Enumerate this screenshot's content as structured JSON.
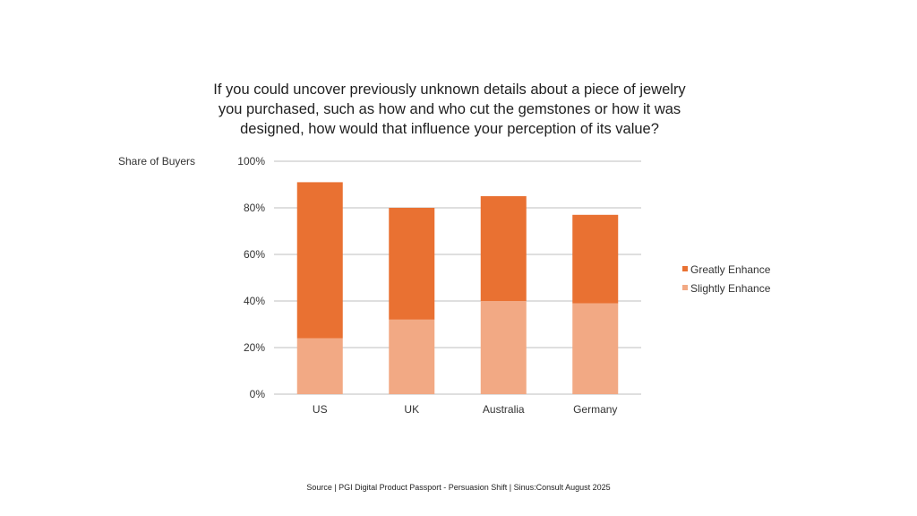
{
  "chart_data": {
    "type": "bar",
    "stacked": true,
    "title_lines": [
      "If you could uncover previously unknown details about a piece of jewelry",
      "you purchased, such as how and who cut the gemstones or how it was",
      "designed, how would that influence your perception of its value?"
    ],
    "ylabel": "Share of Buyers",
    "xlabel": "",
    "categories": [
      "US",
      "UK",
      "Australia",
      "Germany"
    ],
    "series": [
      {
        "name": "Slightly Enhance",
        "color": "#f2a984",
        "values": [
          24,
          32,
          40,
          39
        ]
      },
      {
        "name": "Greatly Enhance",
        "color": "#e97132",
        "values": [
          67,
          48,
          45,
          38
        ]
      }
    ],
    "legend_order": [
      "Greatly Enhance",
      "Slightly Enhance"
    ],
    "ylim": [
      0,
      100
    ],
    "yticks": [
      0,
      20,
      40,
      60,
      80,
      100
    ],
    "ytick_labels": [
      "0%",
      "20%",
      "40%",
      "60%",
      "80%",
      "100%"
    ],
    "grid": true,
    "legend_position": "right"
  },
  "source": "Source | PGI Digital Product Passport  - Persuasion Shift | Sinus:Consult August 2025"
}
